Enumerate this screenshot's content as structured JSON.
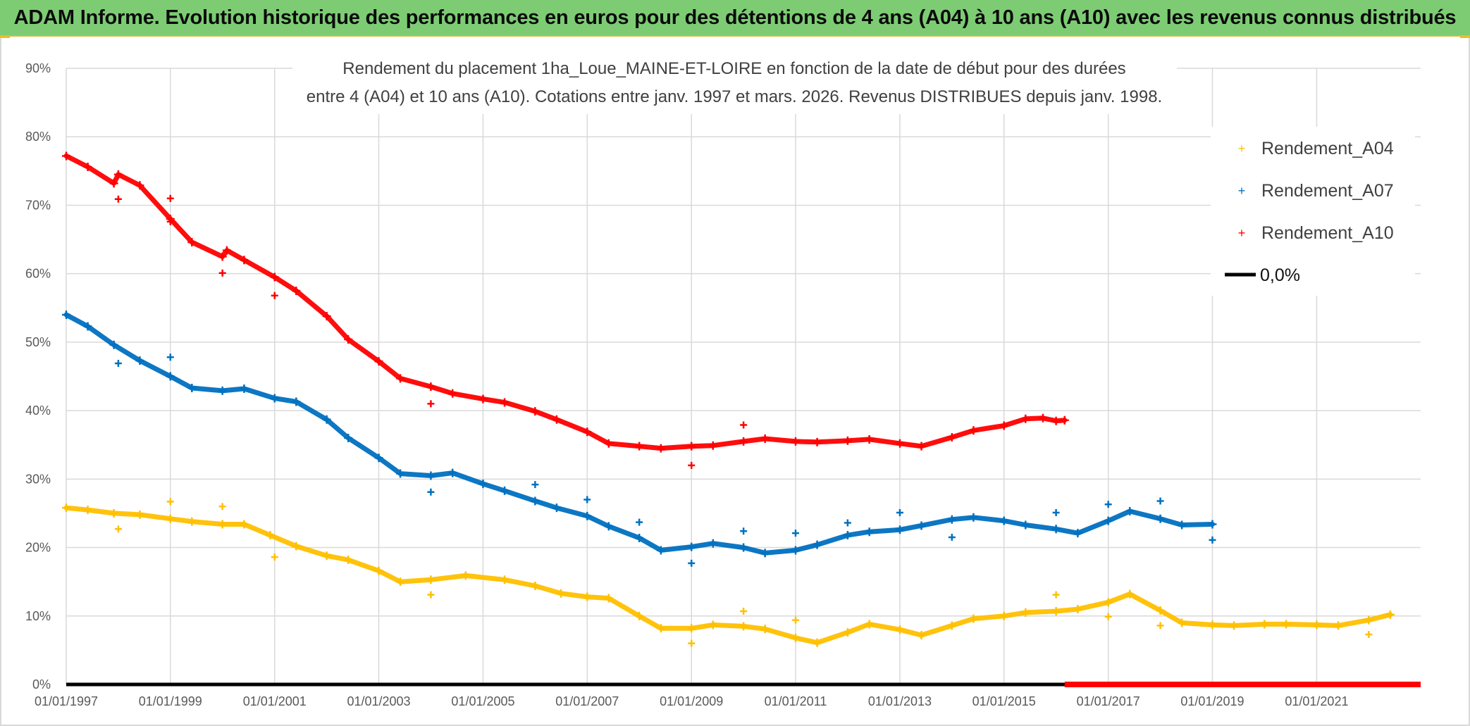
{
  "banner": {
    "title": "ADAM Informe. Evolution historique des performances en euros pour des détentions de 4 ans (A04) à 10 ans (A10) avec les revenus connus distribués"
  },
  "colors": {
    "banner": "#7dcc74",
    "A04": "#ffc000",
    "A07": "#0070c0",
    "A10": "#ff0000",
    "zero": "#000000",
    "grid": "#d9d9d9"
  },
  "chart_data": {
    "type": "scatter",
    "title_lines": [
      "Rendement du placement 1ha_Loue_MAINE-ET-LOIRE en fonction de la date de début pour des durées",
      "entre 4 (A04) et 10 ans (A10). Cotations entre janv. 1997 et mars. 2026. Revenus DISTRIBUES depuis janv. 1998."
    ],
    "xlabel": "",
    "ylabel": "",
    "xlim": [
      "1997-01-01",
      "2022-12-31"
    ],
    "ylim": [
      0,
      90
    ],
    "x_ticks": [
      "01/01/1997",
      "01/01/1999",
      "01/01/2001",
      "01/01/2003",
      "01/01/2005",
      "01/01/2007",
      "01/01/2009",
      "01/01/2011",
      "01/01/2013",
      "01/01/2015",
      "01/01/2017",
      "01/01/2019",
      "01/01/2021"
    ],
    "y_ticks": [
      "0%",
      "10%",
      "20%",
      "30%",
      "40%",
      "50%",
      "60%",
      "70%",
      "80%",
      "90%"
    ],
    "grid": true,
    "legend": {
      "position": "top-right",
      "items": [
        "Rendement_A04",
        "Rendement_A07",
        "Rendement_A10",
        "0,0%"
      ]
    },
    "series": [
      {
        "name": "Rendement_A04",
        "marker": "+",
        "points": [
          [
            "1997-01-01",
            25.8
          ],
          [
            "1997-06-01",
            25.5
          ],
          [
            "1997-12-01",
            25.0
          ],
          [
            "1998-06-01",
            24.8
          ],
          [
            "1999-01-01",
            24.2
          ],
          [
            "1999-06-01",
            23.8
          ],
          [
            "2000-01-01",
            23.4
          ],
          [
            "2000-06-01",
            23.4
          ],
          [
            "2000-12-01",
            21.8
          ],
          [
            "2001-06-01",
            20.2
          ],
          [
            "2002-01-01",
            18.8
          ],
          [
            "2002-06-01",
            18.2
          ],
          [
            "2003-01-01",
            16.6
          ],
          [
            "2003-06-01",
            15.0
          ],
          [
            "2004-01-01",
            15.3
          ],
          [
            "2004-09-01",
            15.9
          ],
          [
            "2005-06-01",
            15.3
          ],
          [
            "2006-01-01",
            14.4
          ],
          [
            "2006-07-01",
            13.3
          ],
          [
            "2007-01-01",
            12.8
          ],
          [
            "2007-06-01",
            12.6
          ],
          [
            "2008-01-01",
            10.0
          ],
          [
            "2008-06-01",
            8.2
          ],
          [
            "2009-01-01",
            8.2
          ],
          [
            "2009-06-01",
            8.7
          ],
          [
            "2010-01-01",
            8.5
          ],
          [
            "2010-06-01",
            8.1
          ],
          [
            "2011-01-01",
            6.8
          ],
          [
            "2011-06-01",
            6.1
          ],
          [
            "2012-01-01",
            7.6
          ],
          [
            "2012-06-01",
            8.8
          ],
          [
            "2013-01-01",
            8.0
          ],
          [
            "2013-06-01",
            7.2
          ],
          [
            "2014-01-01",
            8.6
          ],
          [
            "2014-06-01",
            9.6
          ],
          [
            "2015-01-01",
            10.0
          ],
          [
            "2015-06-01",
            10.5
          ],
          [
            "2016-01-01",
            10.7
          ],
          [
            "2016-06-01",
            11.0
          ],
          [
            "2017-01-01",
            12.0
          ],
          [
            "2017-06-01",
            13.2
          ],
          [
            "2018-01-01",
            10.8
          ],
          [
            "2018-06-01",
            9.0
          ],
          [
            "2019-01-01",
            8.7
          ],
          [
            "2019-06-01",
            8.6
          ],
          [
            "2020-01-01",
            8.8
          ],
          [
            "2020-06-01",
            8.8
          ],
          [
            "2021-01-01",
            8.7
          ],
          [
            "2021-06-01",
            8.6
          ],
          [
            "2022-01-01",
            9.4
          ],
          [
            "2022-06-01",
            10.2
          ]
        ],
        "outliers": [
          [
            "1998-01-01",
            22.7
          ],
          [
            "1999-01-01",
            26.7
          ],
          [
            "2000-01-01",
            26.0
          ],
          [
            "2001-01-01",
            18.6
          ],
          [
            "2004-01-01",
            13.1
          ],
          [
            "2009-01-01",
            6.0
          ],
          [
            "2010-01-01",
            10.7
          ],
          [
            "2011-01-01",
            9.4
          ],
          [
            "2016-01-01",
            13.1
          ],
          [
            "2017-01-01",
            9.9
          ],
          [
            "2018-01-01",
            8.6
          ],
          [
            "2022-01-01",
            7.3
          ]
        ]
      },
      {
        "name": "Rendement_A07",
        "marker": "+",
        "points": [
          [
            "1997-01-01",
            54.0
          ],
          [
            "1997-06-01",
            52.3
          ],
          [
            "1997-12-01",
            49.6
          ],
          [
            "1998-06-01",
            47.3
          ],
          [
            "1999-01-01",
            45.0
          ],
          [
            "1999-06-01",
            43.3
          ],
          [
            "2000-01-01",
            42.9
          ],
          [
            "2000-06-01",
            43.2
          ],
          [
            "2001-01-01",
            41.8
          ],
          [
            "2001-06-01",
            41.3
          ],
          [
            "2002-01-01",
            38.7
          ],
          [
            "2002-06-01",
            36.0
          ],
          [
            "2003-01-01",
            33.1
          ],
          [
            "2003-06-01",
            30.8
          ],
          [
            "2004-01-01",
            30.5
          ],
          [
            "2004-06-01",
            30.9
          ],
          [
            "2005-01-01",
            29.3
          ],
          [
            "2005-06-01",
            28.3
          ],
          [
            "2006-01-01",
            26.8
          ],
          [
            "2006-06-01",
            25.8
          ],
          [
            "2007-01-01",
            24.6
          ],
          [
            "2007-06-01",
            23.1
          ],
          [
            "2008-01-01",
            21.4
          ],
          [
            "2008-06-01",
            19.6
          ],
          [
            "2009-01-01",
            20.1
          ],
          [
            "2009-06-01",
            20.6
          ],
          [
            "2010-01-01",
            20.0
          ],
          [
            "2010-06-01",
            19.2
          ],
          [
            "2011-01-01",
            19.6
          ],
          [
            "2011-06-01",
            20.4
          ],
          [
            "2012-01-01",
            21.8
          ],
          [
            "2012-06-01",
            22.3
          ],
          [
            "2013-01-01",
            22.6
          ],
          [
            "2013-06-01",
            23.2
          ],
          [
            "2014-01-01",
            24.1
          ],
          [
            "2014-06-01",
            24.4
          ],
          [
            "2015-01-01",
            23.9
          ],
          [
            "2015-06-01",
            23.3
          ],
          [
            "2016-01-01",
            22.7
          ],
          [
            "2016-06-01",
            22.1
          ],
          [
            "2017-01-01",
            23.9
          ],
          [
            "2017-06-01",
            25.3
          ],
          [
            "2018-01-01",
            24.2
          ],
          [
            "2018-06-01",
            23.3
          ],
          [
            "2019-01-01",
            23.4
          ]
        ],
        "outliers": [
          [
            "1998-01-01",
            46.9
          ],
          [
            "1999-01-01",
            47.8
          ],
          [
            "2004-01-01",
            28.1
          ],
          [
            "2006-01-01",
            29.2
          ],
          [
            "2007-01-01",
            27.0
          ],
          [
            "2008-01-01",
            23.7
          ],
          [
            "2009-01-01",
            17.7
          ],
          [
            "2010-01-01",
            22.4
          ],
          [
            "2011-01-01",
            22.1
          ],
          [
            "2012-01-01",
            23.6
          ],
          [
            "2013-01-01",
            25.1
          ],
          [
            "2014-01-01",
            21.5
          ],
          [
            "2016-01-01",
            25.1
          ],
          [
            "2017-01-01",
            26.3
          ],
          [
            "2018-01-01",
            26.8
          ],
          [
            "2019-01-01",
            21.1
          ]
        ]
      },
      {
        "name": "Rendement_A10",
        "marker": "+",
        "points": [
          [
            "1997-01-01",
            77.2
          ],
          [
            "1997-06-01",
            75.6
          ],
          [
            "1997-12-01",
            73.2
          ],
          [
            "1998-01-01",
            74.5
          ],
          [
            "1998-06-01",
            72.9
          ],
          [
            "1999-01-01",
            68.0
          ],
          [
            "1999-06-01",
            64.6
          ],
          [
            "2000-01-01",
            62.5
          ],
          [
            "2000-02-01",
            63.4
          ],
          [
            "2000-06-01",
            62.0
          ],
          [
            "2001-01-01",
            59.5
          ],
          [
            "2001-06-01",
            57.5
          ],
          [
            "2002-01-01",
            53.8
          ],
          [
            "2002-06-01",
            50.4
          ],
          [
            "2003-01-01",
            47.2
          ],
          [
            "2003-06-01",
            44.7
          ],
          [
            "2004-01-01",
            43.5
          ],
          [
            "2004-06-01",
            42.5
          ],
          [
            "2005-01-01",
            41.7
          ],
          [
            "2005-06-01",
            41.2
          ],
          [
            "2006-01-01",
            39.9
          ],
          [
            "2006-06-01",
            38.7
          ],
          [
            "2007-01-01",
            36.9
          ],
          [
            "2007-06-01",
            35.2
          ],
          [
            "2008-01-01",
            34.8
          ],
          [
            "2008-06-01",
            34.5
          ],
          [
            "2009-01-01",
            34.8
          ],
          [
            "2009-06-01",
            34.9
          ],
          [
            "2010-01-01",
            35.5
          ],
          [
            "2010-06-01",
            35.9
          ],
          [
            "2011-01-01",
            35.5
          ],
          [
            "2011-06-01",
            35.4
          ],
          [
            "2012-01-01",
            35.6
          ],
          [
            "2012-06-01",
            35.8
          ],
          [
            "2013-01-01",
            35.2
          ],
          [
            "2013-06-01",
            34.8
          ],
          [
            "2014-01-01",
            36.1
          ],
          [
            "2014-06-01",
            37.1
          ],
          [
            "2015-01-01",
            37.8
          ],
          [
            "2015-06-01",
            38.8
          ],
          [
            "2015-10-01",
            38.9
          ],
          [
            "2016-01-01",
            38.5
          ],
          [
            "2016-03-01",
            38.6
          ]
        ],
        "outliers": [
          [
            "1998-01-01",
            70.9
          ],
          [
            "1999-01-01",
            71.0
          ],
          [
            "1999-01-01",
            67.6
          ],
          [
            "2000-01-01",
            60.1
          ],
          [
            "2001-01-01",
            56.8
          ],
          [
            "2004-01-01",
            41.0
          ],
          [
            "2009-01-01",
            32.0
          ],
          [
            "2010-01-01",
            37.9
          ]
        ],
        "zero_segment": [
          [
            "2016-03-01",
            0.0
          ],
          [
            "2022-12-31",
            0.0
          ]
        ]
      },
      {
        "name": "0,0%",
        "marker": "line",
        "points": [
          [
            "1997-01-01",
            0.0
          ],
          [
            "2022-12-31",
            0.0
          ]
        ]
      }
    ]
  }
}
